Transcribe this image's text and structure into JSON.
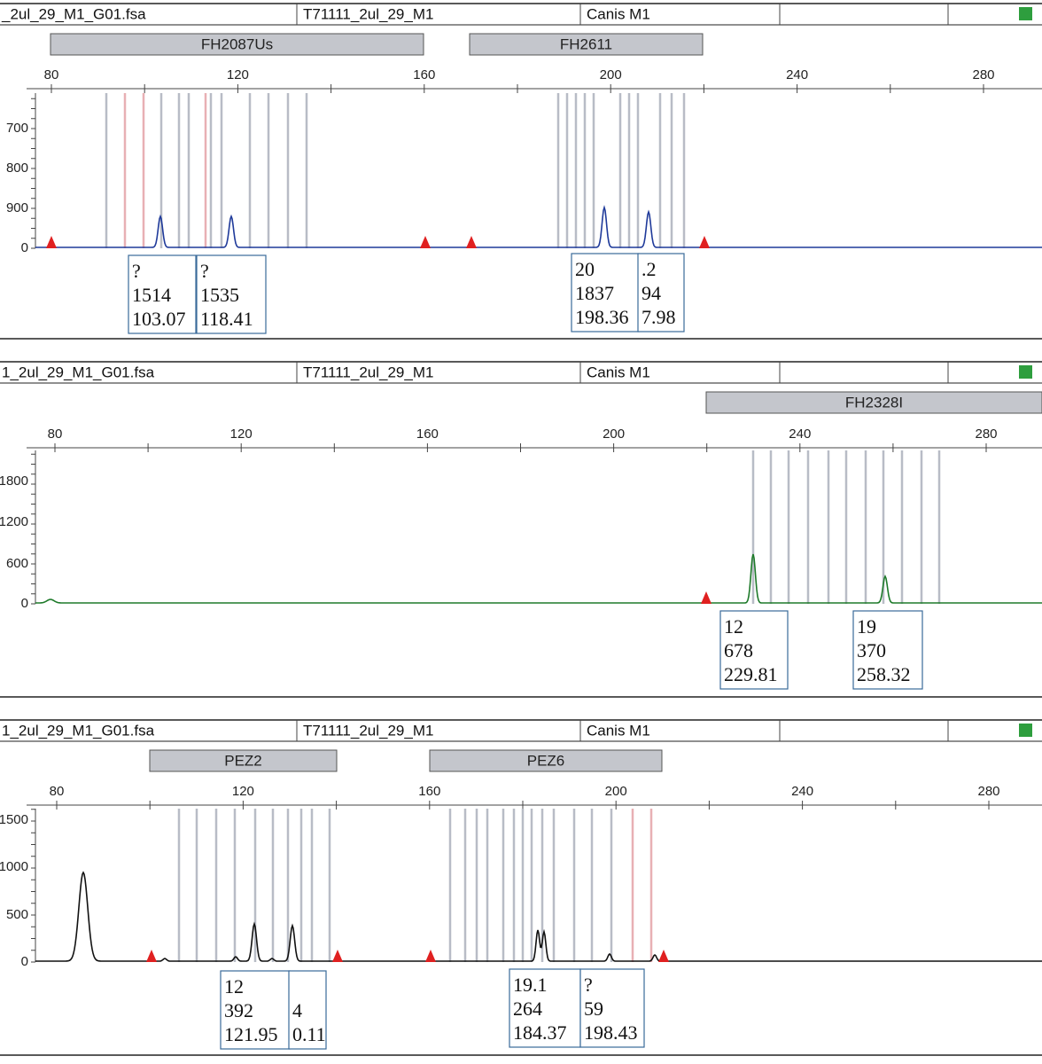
{
  "panels": [
    {
      "header": {
        "file": "_2ul_29_M1_G01.fsa",
        "sample": "T71111_2ul_29_M1",
        "panel": "Canis M1"
      },
      "markers": [
        "FH2087Us",
        "FH2611"
      ],
      "xticks": [
        "80",
        "120",
        "160",
        "200",
        "240",
        "280"
      ],
      "yticks": [
        "700",
        "800",
        "900",
        "0"
      ],
      "peak_labels": [
        [
          "?",
          "1514",
          "103.07"
        ],
        [
          "?",
          "1535",
          "118.41"
        ],
        [
          "20",
          "1837",
          "198.36"
        ],
        [
          ".2",
          "94",
          "7.98"
        ]
      ]
    },
    {
      "header": {
        "file": "1_2ul_29_M1_G01.fsa",
        "sample": "T71111_2ul_29_M1",
        "panel": "Canis M1"
      },
      "markers": [
        "FH2328I"
      ],
      "xticks": [
        "80",
        "120",
        "160",
        "200",
        "240",
        "280"
      ],
      "yticks": [
        "1800",
        "1200",
        "600",
        "0"
      ],
      "peak_labels": [
        [
          "12",
          "678",
          "229.81"
        ],
        [
          "19",
          "370",
          "258.32"
        ]
      ]
    },
    {
      "header": {
        "file": "1_2ul_29_M1_G01.fsa",
        "sample": "T71111_2ul_29_M1",
        "panel": "Canis M1"
      },
      "markers": [
        "PEZ2",
        "PEZ6"
      ],
      "xticks": [
        "80",
        "120",
        "160",
        "200",
        "240",
        "280"
      ],
      "yticks": [
        "1500",
        "1000",
        "500",
        "0"
      ],
      "peak_labels": [
        [
          "12",
          "392",
          "121.95"
        ],
        [
          "4",
          "0.11"
        ],
        [
          "19.1",
          "264",
          "184.37"
        ],
        [
          "?",
          "59",
          "198.43"
        ]
      ]
    }
  ]
}
